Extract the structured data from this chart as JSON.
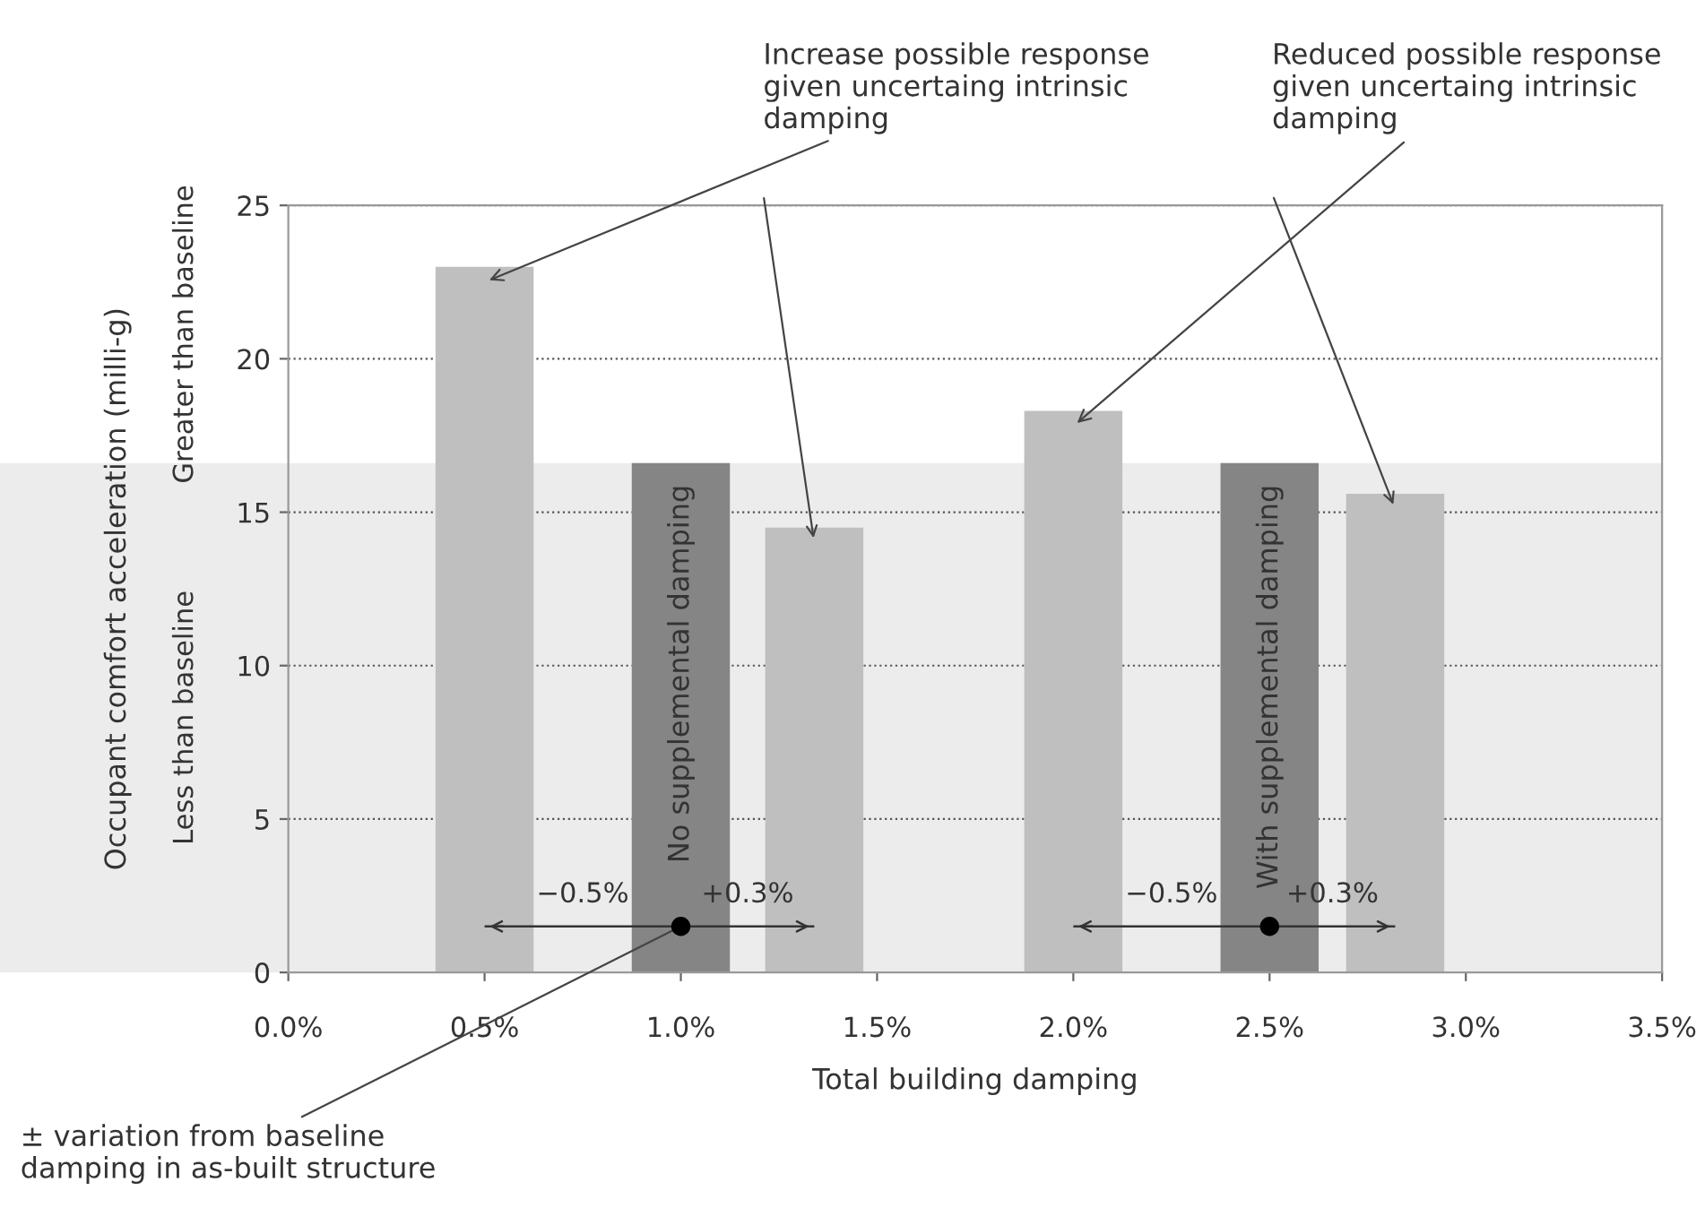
{
  "chart_data": {
    "type": "bar",
    "xlabel": "Total building damping",
    "ylabel": "Occupant comfort acceleration (milli-g)",
    "x": [
      0.5,
      1.0,
      1.34,
      2.0,
      2.5,
      2.82
    ],
    "values": [
      23,
      16.6,
      14.5,
      18.3,
      16.6,
      15.6
    ],
    "colors": [
      "#bfbfbf",
      "#858585",
      "#bfbfbf",
      "#bfbfbf",
      "#858585",
      "#bfbfbf"
    ],
    "series": [
      {
        "type": "scatter",
        "color": "#000000",
        "x": [
          1.0,
          2.5
        ],
        "values": [
          1.5,
          1.5
        ],
        "xerrors": [
          [
            0.5,
            1.34
          ],
          [
            2.0,
            2.82
          ]
        ]
      }
    ],
    "xlim": [
      0,
      3.5
    ],
    "xticks": [
      {
        "value": 0,
        "label": "0.0%"
      },
      {
        "value": 0.5,
        "label": "0.5%"
      },
      {
        "value": 1.0,
        "label": "1.0%"
      },
      {
        "value": 1.5,
        "label": "1.5%"
      },
      {
        "value": 2.0,
        "label": "2.0%"
      },
      {
        "value": 2.5,
        "label": "2.5%"
      },
      {
        "value": 3.0,
        "label": "3.0%"
      },
      {
        "value": 3.5,
        "label": "3.5%"
      }
    ],
    "ylim": [
      0,
      25
    ],
    "yticks": [
      0,
      5,
      10,
      15,
      20,
      25
    ],
    "grid": "y",
    "line_style": "dotted",
    "bands": [
      {
        "axis": "y",
        "from": 0,
        "to": 16.6,
        "label": "Less than baseline",
        "color": "#ececec"
      }
    ],
    "annotations": [
      {
        "text": "Increase possible response given uncertaing intrinsic damping",
        "x": 0.5,
        "y": 23
      },
      {
        "text": "Reduced possible response given uncertaing intrinsic damping",
        "x": 2.0,
        "y": 18.3
      },
      {
        "text": "No supplemental damping",
        "x": 1.0,
        "y": 16.6
      },
      {
        "text": "With supplemental damping",
        "x": 2.5,
        "y": 16.6
      },
      {
        "text": "± variation from baseline damping in as-built structure",
        "x": 1.0,
        "y": 1.5
      },
      "−0.5%",
      "+0.3%",
      "−0.5%",
      "+0.3%",
      "Greater than baseline"
    ]
  }
}
